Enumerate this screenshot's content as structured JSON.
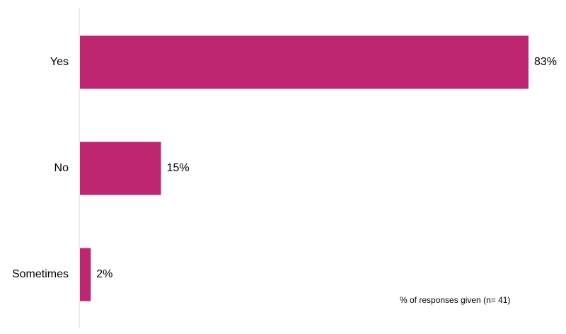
{
  "chart_data": {
    "type": "bar",
    "orientation": "horizontal",
    "categories": [
      "Yes",
      "No",
      "Sometimes"
    ],
    "values": [
      83,
      15,
      2
    ],
    "value_labels": [
      "83%",
      "15%",
      "2%"
    ],
    "color": "#bf2672",
    "annotation": "% of responses given (n= 41)"
  }
}
